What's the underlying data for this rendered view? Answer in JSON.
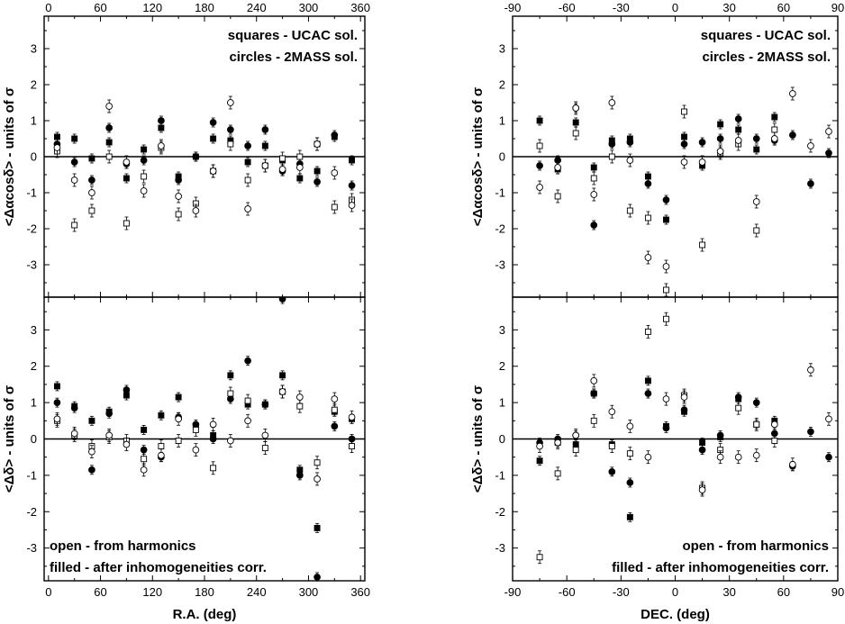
{
  "chart_data": [
    {
      "type": "scatter",
      "panel": "top-left",
      "xlabel": "",
      "ylabel": "<Δαcosδ> - units of σ",
      "xlim": [
        -5,
        365
      ],
      "ylim": [
        -3.9,
        3.9
      ],
      "xticks": [
        0,
        60,
        120,
        180,
        240,
        300,
        360
      ],
      "yticks": [
        -3,
        -2,
        -1,
        0,
        1,
        2,
        3
      ],
      "x_tick_labels_position": "top",
      "annotations": [
        "squares - UCAC sol.",
        "circles - 2MASS sol."
      ],
      "annotation_position": "top-right",
      "series": [
        {
          "marker": "square-filled",
          "x": [
            10,
            30,
            50,
            70,
            90,
            110,
            130,
            150,
            170,
            190,
            210,
            230,
            250,
            270,
            290,
            310,
            330,
            350
          ],
          "y": [
            0.55,
            0.5,
            -0.05,
            0.4,
            -0.6,
            0.2,
            0.8,
            -0.55,
            0.0,
            0.5,
            0.45,
            -0.15,
            0.3,
            -0.1,
            -0.6,
            -0.4,
            0.55,
            -0.1
          ]
        },
        {
          "marker": "circle-filled",
          "x": [
            10,
            30,
            50,
            70,
            90,
            110,
            130,
            150,
            170,
            190,
            210,
            230,
            250,
            270,
            290,
            310,
            330,
            350
          ],
          "y": [
            0.35,
            -0.15,
            -0.65,
            0.8,
            -0.2,
            -0.1,
            1.0,
            -0.65,
            0.0,
            0.95,
            0.75,
            0.3,
            0.75,
            -0.4,
            -0.2,
            -0.7,
            0.6,
            -0.8
          ]
        },
        {
          "marker": "square-open",
          "x": [
            10,
            30,
            50,
            70,
            90,
            110,
            130,
            150,
            170,
            190,
            210,
            230,
            250,
            270,
            290,
            310,
            330,
            350
          ],
          "y": [
            0.15,
            -1.9,
            -1.5,
            0.0,
            -1.85,
            -0.55,
            0.25,
            -1.6,
            -1.3,
            -0.4,
            0.35,
            -0.65,
            -0.25,
            -0.05,
            0.0,
            0.35,
            -1.4,
            -1.2
          ]
        },
        {
          "marker": "circle-open",
          "x": [
            10,
            30,
            50,
            70,
            90,
            110,
            130,
            150,
            170,
            190,
            210,
            230,
            250,
            270,
            290,
            310,
            330,
            350
          ],
          "y": [
            0.25,
            -0.65,
            -1.0,
            1.4,
            -0.15,
            -0.95,
            0.3,
            -1.1,
            -1.5,
            -0.4,
            1.5,
            -1.45,
            -0.25,
            -0.35,
            -0.3,
            0.35,
            -0.45,
            -1.35
          ]
        }
      ]
    },
    {
      "type": "scatter",
      "panel": "bottom-left",
      "xlabel": "R.A. (deg)",
      "ylabel": "<Δδ> - units of σ",
      "xlim": [
        -5,
        365
      ],
      "ylim": [
        -3.9,
        3.9
      ],
      "xticks": [
        0,
        60,
        120,
        180,
        240,
        300,
        360
      ],
      "yticks": [
        -3,
        -2,
        -1,
        0,
        1,
        2,
        3
      ],
      "x_tick_labels_position": "bottom",
      "annotations": [
        "open - from harmonics",
        "filled - after inhomogeneities corr."
      ],
      "annotation_position": "bottom-left",
      "series": [
        {
          "marker": "square-filled",
          "x": [
            10,
            30,
            50,
            70,
            90,
            110,
            130,
            150,
            170,
            190,
            210,
            230,
            250,
            270,
            290,
            310,
            330,
            350
          ],
          "y": [
            1.45,
            0.9,
            0.5,
            0.75,
            1.2,
            0.25,
            0.65,
            1.15,
            0.35,
            0.1,
            1.75,
            0.95,
            0.95,
            1.75,
            -0.85,
            -2.45,
            0.75,
            0.55
          ]
        },
        {
          "marker": "circle-filled",
          "x": [
            10,
            30,
            50,
            70,
            90,
            110,
            130,
            150,
            170,
            190,
            210,
            230,
            250,
            270,
            290,
            310,
            330,
            350
          ],
          "y": [
            1.0,
            0.85,
            -0.85,
            0.7,
            1.35,
            -0.3,
            -0.5,
            0.6,
            0.4,
            0.0,
            1.1,
            2.15,
            0.95,
            3.85,
            -1.0,
            -3.8,
            0.35,
            0.0
          ]
        },
        {
          "marker": "square-open",
          "x": [
            10,
            30,
            50,
            70,
            90,
            110,
            130,
            150,
            170,
            190,
            210,
            230,
            250,
            270,
            290,
            310,
            330,
            350
          ],
          "y": [
            0.5,
            0.1,
            -0.2,
            0.05,
            -0.05,
            -0.55,
            -0.2,
            -0.05,
            0.25,
            -0.8,
            1.25,
            1.05,
            -0.25,
            1.3,
            0.9,
            -0.65,
            0.8,
            -0.2
          ]
        },
        {
          "marker": "circle-open",
          "x": [
            10,
            30,
            50,
            70,
            90,
            110,
            130,
            150,
            170,
            190,
            210,
            230,
            250,
            270,
            290,
            310,
            330,
            350
          ],
          "y": [
            0.55,
            0.15,
            -0.35,
            0.1,
            -0.15,
            -0.85,
            -0.45,
            0.55,
            -0.3,
            0.4,
            -0.05,
            0.5,
            0.1,
            1.3,
            1.15,
            -1.1,
            1.1,
            0.6
          ]
        }
      ]
    },
    {
      "type": "scatter",
      "panel": "top-right",
      "xlabel": "",
      "ylabel": "<Δαcosδ> - units of σ",
      "xlim": [
        -90,
        90
      ],
      "ylim": [
        -3.9,
        3.9
      ],
      "xticks": [
        -90,
        -60,
        -30,
        0,
        30,
        60,
        90
      ],
      "yticks": [
        -3,
        -2,
        -1,
        0,
        1,
        2,
        3
      ],
      "x_tick_labels_position": "top",
      "annotations": [
        "squares - UCAC sol.",
        "circles - 2MASS sol."
      ],
      "annotation_position": "top-right",
      "series": [
        {
          "marker": "square-filled",
          "x": [
            -75,
            -65,
            -55,
            -45,
            -35,
            -25,
            -15,
            -5,
            5,
            15,
            25,
            35,
            45,
            55
          ],
          "y": [
            1.0,
            -0.35,
            0.95,
            -0.3,
            0.45,
            0.5,
            -0.55,
            -1.75,
            0.55,
            -0.25,
            0.9,
            0.75,
            0.2,
            1.1
          ]
        },
        {
          "marker": "circle-filled",
          "x": [
            -75,
            -65,
            -55,
            -45,
            -35,
            -25,
            -15,
            -5,
            5,
            15,
            25,
            35,
            45,
            55,
            65,
            75,
            85
          ],
          "y": [
            -0.25,
            -0.1,
            1.35,
            -1.9,
            0.35,
            0.4,
            -0.75,
            -1.2,
            0.35,
            0.4,
            0.5,
            1.05,
            0.5,
            0.45,
            0.6,
            -0.75,
            0.1
          ]
        },
        {
          "marker": "square-open",
          "x": [
            -75,
            -65,
            -55,
            -45,
            -35,
            -25,
            -15,
            -5,
            5,
            15,
            25,
            35,
            45,
            55
          ],
          "y": [
            0.3,
            -1.1,
            0.65,
            -0.6,
            0.0,
            -1.5,
            -1.7,
            -3.7,
            1.25,
            -2.45,
            0.1,
            0.35,
            -2.05,
            0.75
          ]
        },
        {
          "marker": "circle-open",
          "x": [
            -75,
            -65,
            -55,
            -45,
            -35,
            -25,
            -15,
            -5,
            5,
            15,
            25,
            35,
            45,
            55,
            65,
            75,
            85
          ],
          "y": [
            -0.85,
            -0.3,
            1.35,
            -1.05,
            1.5,
            -0.1,
            -2.8,
            -3.05,
            -0.15,
            -0.15,
            0.15,
            0.45,
            -1.25,
            0.5,
            1.75,
            0.3,
            0.7
          ]
        }
      ]
    },
    {
      "type": "scatter",
      "panel": "bottom-right",
      "xlabel": "DEC. (deg)",
      "ylabel": "<Δδ> - units of σ",
      "xlim": [
        -90,
        90
      ],
      "ylim": [
        -3.9,
        3.9
      ],
      "xticks": [
        -90,
        -60,
        -30,
        0,
        30,
        60,
        90
      ],
      "yticks": [
        -3,
        -2,
        -1,
        0,
        1,
        2,
        3
      ],
      "x_tick_labels_position": "bottom",
      "annotations": [
        "open - from harmonics",
        "filled - after inhomogeneities corr."
      ],
      "annotation_position": "bottom-right",
      "series": [
        {
          "marker": "square-filled",
          "x": [
            -75,
            -65,
            -55,
            -45,
            -35,
            -25,
            -15,
            -5,
            5,
            15,
            25,
            35,
            45,
            55
          ],
          "y": [
            -0.6,
            -0.1,
            -0.15,
            1.25,
            -0.15,
            -2.15,
            1.6,
            0.35,
            0.75,
            -0.1,
            0.05,
            1.1,
            0.4,
            0.5
          ]
        },
        {
          "marker": "circle-filled",
          "x": [
            -75,
            -65,
            -55,
            -45,
            -35,
            -25,
            -15,
            -5,
            5,
            15,
            25,
            35,
            45,
            55,
            65,
            75,
            85
          ],
          "y": [
            -0.1,
            0.0,
            0.1,
            1.25,
            -0.9,
            -1.2,
            1.25,
            0.3,
            0.8,
            -0.3,
            0.1,
            1.15,
            1.0,
            0.15,
            -0.75,
            0.2,
            -0.5
          ]
        },
        {
          "marker": "square-open",
          "x": [
            -75,
            -65,
            -55,
            -45,
            -35,
            -25,
            -15,
            -5,
            5,
            15,
            25,
            35,
            45,
            55
          ],
          "y": [
            -3.25,
            -0.95,
            -0.3,
            0.5,
            -0.2,
            -0.4,
            2.95,
            3.3,
            1.2,
            -1.35,
            -0.3,
            0.85,
            0.4,
            -0.05
          ]
        },
        {
          "marker": "circle-open",
          "x": [
            -75,
            -65,
            -55,
            -45,
            -35,
            -25,
            -15,
            -5,
            5,
            15,
            25,
            35,
            45,
            55,
            65,
            75,
            85
          ],
          "y": [
            -0.2,
            -0.1,
            0.1,
            1.6,
            0.75,
            0.35,
            -0.5,
            1.1,
            1.15,
            -1.4,
            -0.5,
            -0.5,
            -0.45,
            0.4,
            -0.7,
            1.9,
            0.55
          ]
        }
      ]
    }
  ]
}
